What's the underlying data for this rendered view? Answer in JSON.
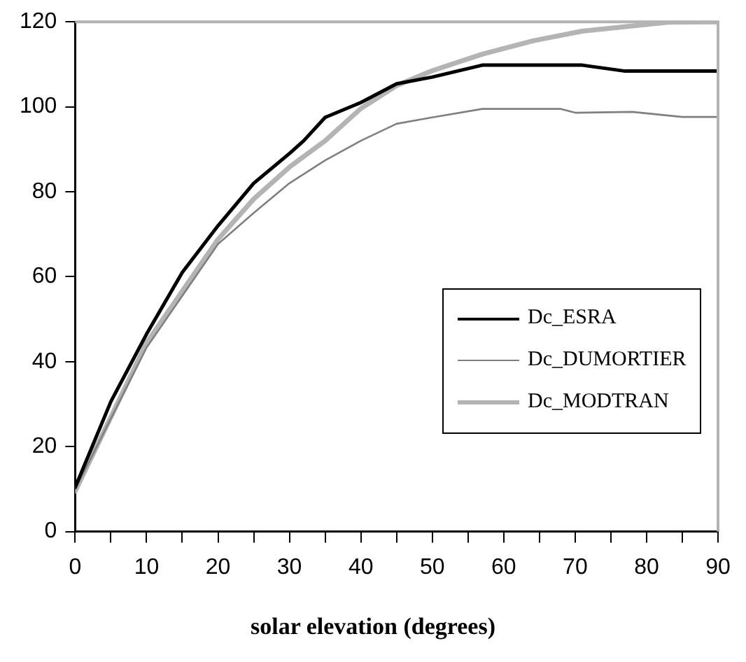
{
  "chart_data": {
    "type": "line",
    "xlabel": "solar elevation (degrees)",
    "xlim": [
      0,
      90
    ],
    "xticks": [
      0,
      {
        "value": 5,
        "label": null
      },
      10,
      {
        "value": 15,
        "label": null
      },
      20,
      {
        "value": 25,
        "label": null
      },
      30,
      {
        "value": 35,
        "label": null
      },
      40,
      {
        "value": 45,
        "label": null
      },
      50,
      {
        "value": 55,
        "label": null
      },
      60,
      {
        "value": 65,
        "label": null
      },
      70,
      {
        "value": 75,
        "label": null
      },
      80,
      {
        "value": 85,
        "label": null
      },
      90
    ],
    "ylim": [
      0,
      120
    ],
    "yticks": [
      0,
      20,
      40,
      60,
      80,
      100,
      120
    ],
    "grid": false,
    "legend": "right",
    "marker": "none",
    "line_style": "solid",
    "series": [
      {
        "name": "Dc_ESRA",
        "color": "#000000",
        "x": [
          0,
          5,
          10,
          15,
          20,
          25,
          30,
          32,
          35,
          40,
          45,
          50,
          57,
          71,
          77,
          90
        ],
        "values": [
          10.4,
          30.6,
          46.5,
          61,
          72,
          82,
          89,
          92,
          97.5,
          101,
          105.4,
          107,
          109.8,
          109.8,
          108.4,
          108.4
        ]
      },
      {
        "name": "Dc_DUMORTIER",
        "color": "#808080",
        "x": [
          0,
          10,
          20,
          25,
          30,
          35,
          40,
          45,
          50,
          57,
          68,
          70,
          78,
          85,
          90
        ],
        "values": [
          9.9,
          43.3,
          67.7,
          75,
          82,
          87.4,
          92,
          96,
          97.5,
          99.5,
          99.5,
          98.6,
          98.8,
          97.6,
          97.6
        ]
      },
      {
        "name": "Dc_MODTRAN",
        "color": "#b4b4b4",
        "x": [
          0,
          10,
          20,
          25,
          30,
          35,
          40,
          45,
          50,
          57,
          64,
          71,
          83,
          90
        ],
        "values": [
          9.5,
          44.4,
          68.8,
          78.3,
          85.8,
          92,
          99.6,
          105,
          108.5,
          112.4,
          115.5,
          117.8,
          119.9,
          120
        ]
      }
    ]
  }
}
